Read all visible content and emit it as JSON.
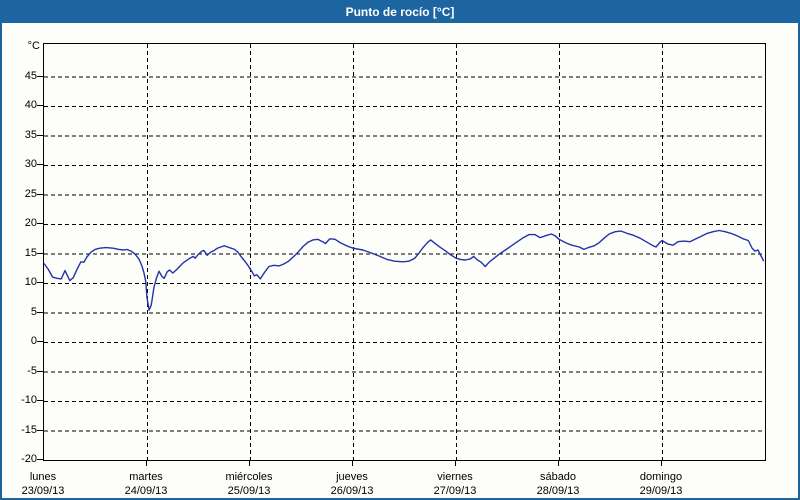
{
  "window": {
    "title": "Punto de rocío [°C]"
  },
  "colors": {
    "frame_border": "#1d65a0",
    "titlebar_bg": "#1d65a0",
    "titlebar_text": "#ffffff",
    "plot_border": "#000000",
    "gridline": "#000000",
    "axis_text": "#000000",
    "series_line": "#2233aa",
    "background": "#fdfdf9"
  },
  "y_axis": {
    "unit_label": "°C",
    "tick_values": [
      45,
      40,
      35,
      30,
      25,
      20,
      15,
      10,
      5,
      0,
      -5,
      -10,
      -15,
      -20
    ],
    "min": -20,
    "max": 50
  },
  "x_axis": {
    "days": [
      {
        "name": "lunes",
        "date": "23/09/13"
      },
      {
        "name": "martes",
        "date": "24/09/13"
      },
      {
        "name": "miércoles",
        "date": "25/09/13"
      },
      {
        "name": "jueves",
        "date": "26/09/13"
      },
      {
        "name": "viernes",
        "date": "27/09/13"
      },
      {
        "name": "sábado",
        "date": "28/09/13"
      },
      {
        "name": "domingo",
        "date": "29/09/13"
      }
    ]
  },
  "chart_data": {
    "type": "line",
    "title": "Punto de rocío [°C]",
    "ylabel": "°C",
    "ylim": [
      -20,
      50
    ],
    "xlim_hours": [
      0,
      168
    ],
    "x_unit": "hours since lunes 23/09/13 00:00",
    "grid": true,
    "legend": "none",
    "series": [
      {
        "name": "Punto de rocío",
        "color": "#2233aa",
        "points": [
          [
            0,
            13.3
          ],
          [
            1,
            12.3
          ],
          [
            2,
            11.0
          ],
          [
            3,
            10.8
          ],
          [
            4,
            10.7
          ],
          [
            4.9,
            12.1
          ],
          [
            6,
            10.4
          ],
          [
            6.8,
            10.9
          ],
          [
            7.7,
            12.3
          ],
          [
            8.6,
            13.6
          ],
          [
            9.3,
            13.5
          ],
          [
            10,
            14.4
          ],
          [
            10.9,
            15.2
          ],
          [
            11.9,
            15.7
          ],
          [
            13,
            15.9
          ],
          [
            14.4,
            16.0
          ],
          [
            16.1,
            15.9
          ],
          [
            17.5,
            15.7
          ],
          [
            18.6,
            15.6
          ],
          [
            19.3,
            15.7
          ],
          [
            20.3,
            15.4
          ],
          [
            21.2,
            14.9
          ],
          [
            22.1,
            14.1
          ],
          [
            22.8,
            12.9
          ],
          [
            23.3,
            11.7
          ],
          [
            23.7,
            10.3
          ],
          [
            24,
            7.5
          ],
          [
            24.5,
            5.4
          ],
          [
            25,
            6.3
          ],
          [
            25.6,
            9.2
          ],
          [
            26.2,
            10.8
          ],
          [
            26.8,
            12.0
          ],
          [
            27.5,
            11.1
          ],
          [
            28,
            10.8
          ],
          [
            28.7,
            11.9
          ],
          [
            29.3,
            12.2
          ],
          [
            30,
            11.7
          ],
          [
            30.8,
            12.2
          ],
          [
            31.6,
            12.8
          ],
          [
            32.4,
            13.4
          ],
          [
            33.2,
            13.8
          ],
          [
            34,
            14.2
          ],
          [
            34.8,
            14.5
          ],
          [
            35.2,
            14.2
          ],
          [
            36,
            14.9
          ],
          [
            36.8,
            15.4
          ],
          [
            37.3,
            15.5
          ],
          [
            38,
            14.7
          ],
          [
            38.8,
            15.2
          ],
          [
            39.6,
            15.5
          ],
          [
            40.4,
            15.9
          ],
          [
            41.2,
            16.1
          ],
          [
            42,
            16.3
          ],
          [
            42.8,
            16.1
          ],
          [
            43.6,
            15.9
          ],
          [
            44.4,
            15.7
          ],
          [
            45.2,
            15.2
          ],
          [
            46,
            14.4
          ],
          [
            46.8,
            13.7
          ],
          [
            47.6,
            12.9
          ],
          [
            48,
            12.4
          ],
          [
            48.4,
            12.0
          ],
          [
            49,
            11.2
          ],
          [
            49.6,
            11.4
          ],
          [
            50.4,
            10.7
          ],
          [
            51.2,
            11.6
          ],
          [
            52.4,
            12.8
          ],
          [
            53.6,
            13.0
          ],
          [
            54.8,
            12.9
          ],
          [
            55.8,
            13.2
          ],
          [
            57,
            13.7
          ],
          [
            58.2,
            14.5
          ],
          [
            59.3,
            15.3
          ],
          [
            60.4,
            16.2
          ],
          [
            61.5,
            16.9
          ],
          [
            62.7,
            17.3
          ],
          [
            63.8,
            17.4
          ],
          [
            64.9,
            17.0
          ],
          [
            65.6,
            16.7
          ],
          [
            66.6,
            17.5
          ],
          [
            67.8,
            17.4
          ],
          [
            69.1,
            16.8
          ],
          [
            70.8,
            16.2
          ],
          [
            72,
            15.9
          ],
          [
            74.3,
            15.6
          ],
          [
            76.2,
            15.1
          ],
          [
            78,
            14.6
          ],
          [
            79.9,
            14.0
          ],
          [
            81.7,
            13.7
          ],
          [
            83.6,
            13.6
          ],
          [
            85,
            13.7
          ],
          [
            86.4,
            14.2
          ],
          [
            87.3,
            15.0
          ],
          [
            88.3,
            16.0
          ],
          [
            89.4,
            16.9
          ],
          [
            90.1,
            17.3
          ],
          [
            91.3,
            16.6
          ],
          [
            92.4,
            16.0
          ],
          [
            93.6,
            15.4
          ],
          [
            94.7,
            14.8
          ],
          [
            96,
            14.2
          ],
          [
            97,
            14.0
          ],
          [
            98.2,
            13.9
          ],
          [
            99.4,
            14.1
          ],
          [
            100.1,
            14.5
          ],
          [
            101,
            13.9
          ],
          [
            101.9,
            13.5
          ],
          [
            102.8,
            12.8
          ],
          [
            103.8,
            13.6
          ],
          [
            104.9,
            14.2
          ],
          [
            106.1,
            14.9
          ],
          [
            107.5,
            15.6
          ],
          [
            108.9,
            16.3
          ],
          [
            110.3,
            17.0
          ],
          [
            111.7,
            17.7
          ],
          [
            113,
            18.2
          ],
          [
            114.4,
            18.2
          ],
          [
            115.6,
            17.7
          ],
          [
            116.8,
            18.0
          ],
          [
            118.2,
            18.3
          ],
          [
            119.1,
            18.0
          ],
          [
            120,
            17.4
          ],
          [
            121.6,
            16.8
          ],
          [
            123,
            16.4
          ],
          [
            124.7,
            16.1
          ],
          [
            125.8,
            15.7
          ],
          [
            126.8,
            16.0
          ],
          [
            128.2,
            16.3
          ],
          [
            129.3,
            16.8
          ],
          [
            130.5,
            17.6
          ],
          [
            131.7,
            18.3
          ],
          [
            133.1,
            18.7
          ],
          [
            134.5,
            18.8
          ],
          [
            135.9,
            18.4
          ],
          [
            137.3,
            18.1
          ],
          [
            138.9,
            17.6
          ],
          [
            140.3,
            17.0
          ],
          [
            141.7,
            16.4
          ],
          [
            142.6,
            16.1
          ],
          [
            143.5,
            16.9
          ],
          [
            144,
            17.2
          ],
          [
            145.4,
            16.6
          ],
          [
            146.6,
            16.4
          ],
          [
            147.7,
            17.0
          ],
          [
            149.1,
            17.1
          ],
          [
            150.5,
            17.0
          ],
          [
            151.7,
            17.4
          ],
          [
            153.1,
            17.9
          ],
          [
            154.5,
            18.4
          ],
          [
            155.9,
            18.7
          ],
          [
            157.3,
            18.9
          ],
          [
            158.7,
            18.7
          ],
          [
            160.1,
            18.4
          ],
          [
            161.5,
            18.0
          ],
          [
            162.9,
            17.5
          ],
          [
            164.1,
            17.2
          ],
          [
            165,
            15.9
          ],
          [
            165.7,
            15.4
          ],
          [
            166.4,
            15.6
          ],
          [
            166.8,
            14.9
          ],
          [
            167.3,
            14.3
          ],
          [
            167.7,
            13.7
          ]
        ]
      }
    ]
  }
}
